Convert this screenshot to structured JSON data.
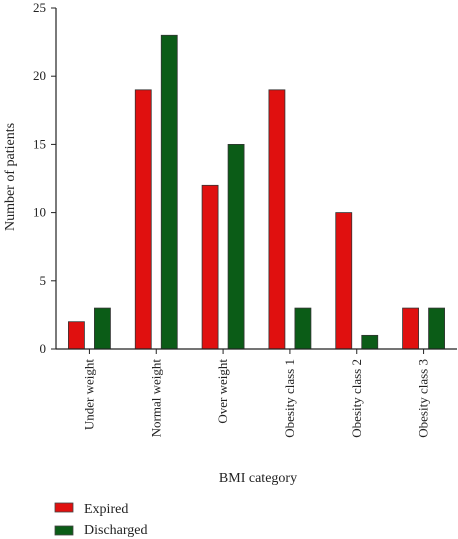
{
  "chart_data": {
    "type": "bar",
    "categories": [
      "Under weight",
      "Normal weight",
      "Over weight",
      "Obesity class 1",
      "Obesity class 2",
      "Obesity class 3"
    ],
    "series": [
      {
        "name": "Expired",
        "values": [
          2,
          19,
          12,
          19,
          10,
          3
        ],
        "color": "#e0100f"
      },
      {
        "name": "Discharged",
        "values": [
          3,
          23,
          15,
          3,
          1,
          3
        ],
        "color": "#0b5c17"
      }
    ],
    "xlabel": "BMI category",
    "ylabel": "Number of patients",
    "ylim": [
      0,
      25
    ],
    "yticks": [
      0,
      5,
      10,
      15,
      20,
      25
    ],
    "grid": false,
    "legend_position": "bottom-left"
  }
}
